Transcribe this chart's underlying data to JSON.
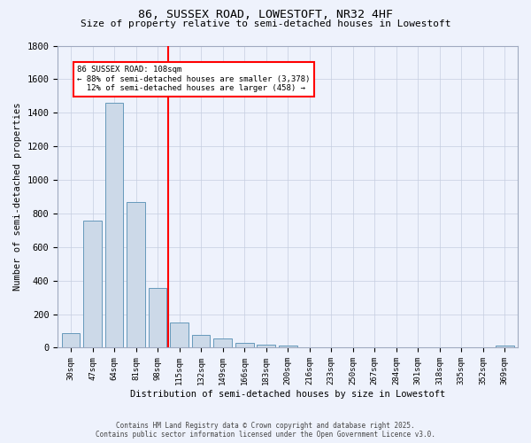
{
  "title1": "86, SUSSEX ROAD, LOWESTOFT, NR32 4HF",
  "title2": "Size of property relative to semi-detached houses in Lowestoft",
  "xlabel": "Distribution of semi-detached houses by size in Lowestoft",
  "ylabel": "Number of semi-detached properties",
  "categories": [
    "30sqm",
    "47sqm",
    "64sqm",
    "81sqm",
    "98sqm",
    "115sqm",
    "132sqm",
    "149sqm",
    "166sqm",
    "183sqm",
    "200sqm",
    "216sqm",
    "233sqm",
    "250sqm",
    "267sqm",
    "284sqm",
    "301sqm",
    "318sqm",
    "335sqm",
    "352sqm",
    "369sqm"
  ],
  "values": [
    88,
    760,
    1460,
    870,
    355,
    150,
    75,
    55,
    30,
    18,
    14,
    0,
    0,
    0,
    0,
    0,
    0,
    0,
    0,
    0,
    12
  ],
  "bar_color": "#ccd9e8",
  "bar_edge_color": "#6699bb",
  "vline_color": "red",
  "annotation_line1": "86 SUSSEX ROAD: 108sqm",
  "annotation_line2": "← 88% of semi-detached houses are smaller (3,378)",
  "annotation_line3": "  12% of semi-detached houses are larger (458) →",
  "annotation_box_color": "white",
  "annotation_box_edge_color": "red",
  "ylim": [
    0,
    1800
  ],
  "yticks": [
    0,
    200,
    400,
    600,
    800,
    1000,
    1200,
    1400,
    1600,
    1800
  ],
  "footer1": "Contains HM Land Registry data © Crown copyright and database right 2025.",
  "footer2": "Contains public sector information licensed under the Open Government Licence v3.0.",
  "bg_color": "#eef2fc",
  "grid_color": "#c5cde0"
}
